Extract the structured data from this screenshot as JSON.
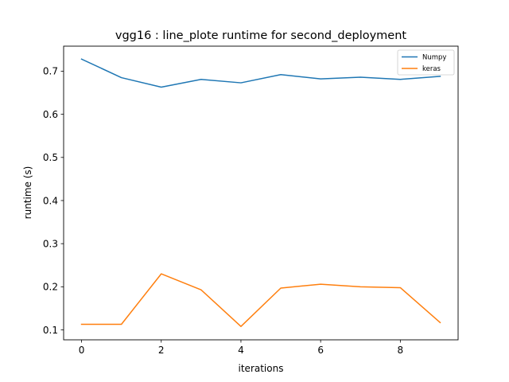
{
  "chart_data": {
    "type": "line",
    "title": "vgg16 : line_plote runtime  for second_deployment",
    "xlabel": "iterations",
    "ylabel": "runtime (s)",
    "xlim": [
      -0.45,
      9.45
    ],
    "ylim": [
      0.077,
      0.758
    ],
    "xticks": [
      0,
      2,
      4,
      6,
      8
    ],
    "yticks": [
      0.1,
      0.2,
      0.3,
      0.4,
      0.5,
      0.6,
      0.7
    ],
    "x": [
      0,
      1,
      2,
      3,
      4,
      5,
      6,
      7,
      8,
      9
    ],
    "series": [
      {
        "name": "Numpy",
        "color": "#1f77b4",
        "values": [
          0.728,
          0.685,
          0.663,
          0.681,
          0.673,
          0.692,
          0.682,
          0.686,
          0.681,
          0.688
        ]
      },
      {
        "name": "keras",
        "color": "#ff7f0e",
        "values": [
          0.113,
          0.113,
          0.23,
          0.193,
          0.108,
          0.197,
          0.206,
          0.2,
          0.198,
          0.117
        ]
      }
    ],
    "legend_position": "top-right",
    "grid": false
  }
}
